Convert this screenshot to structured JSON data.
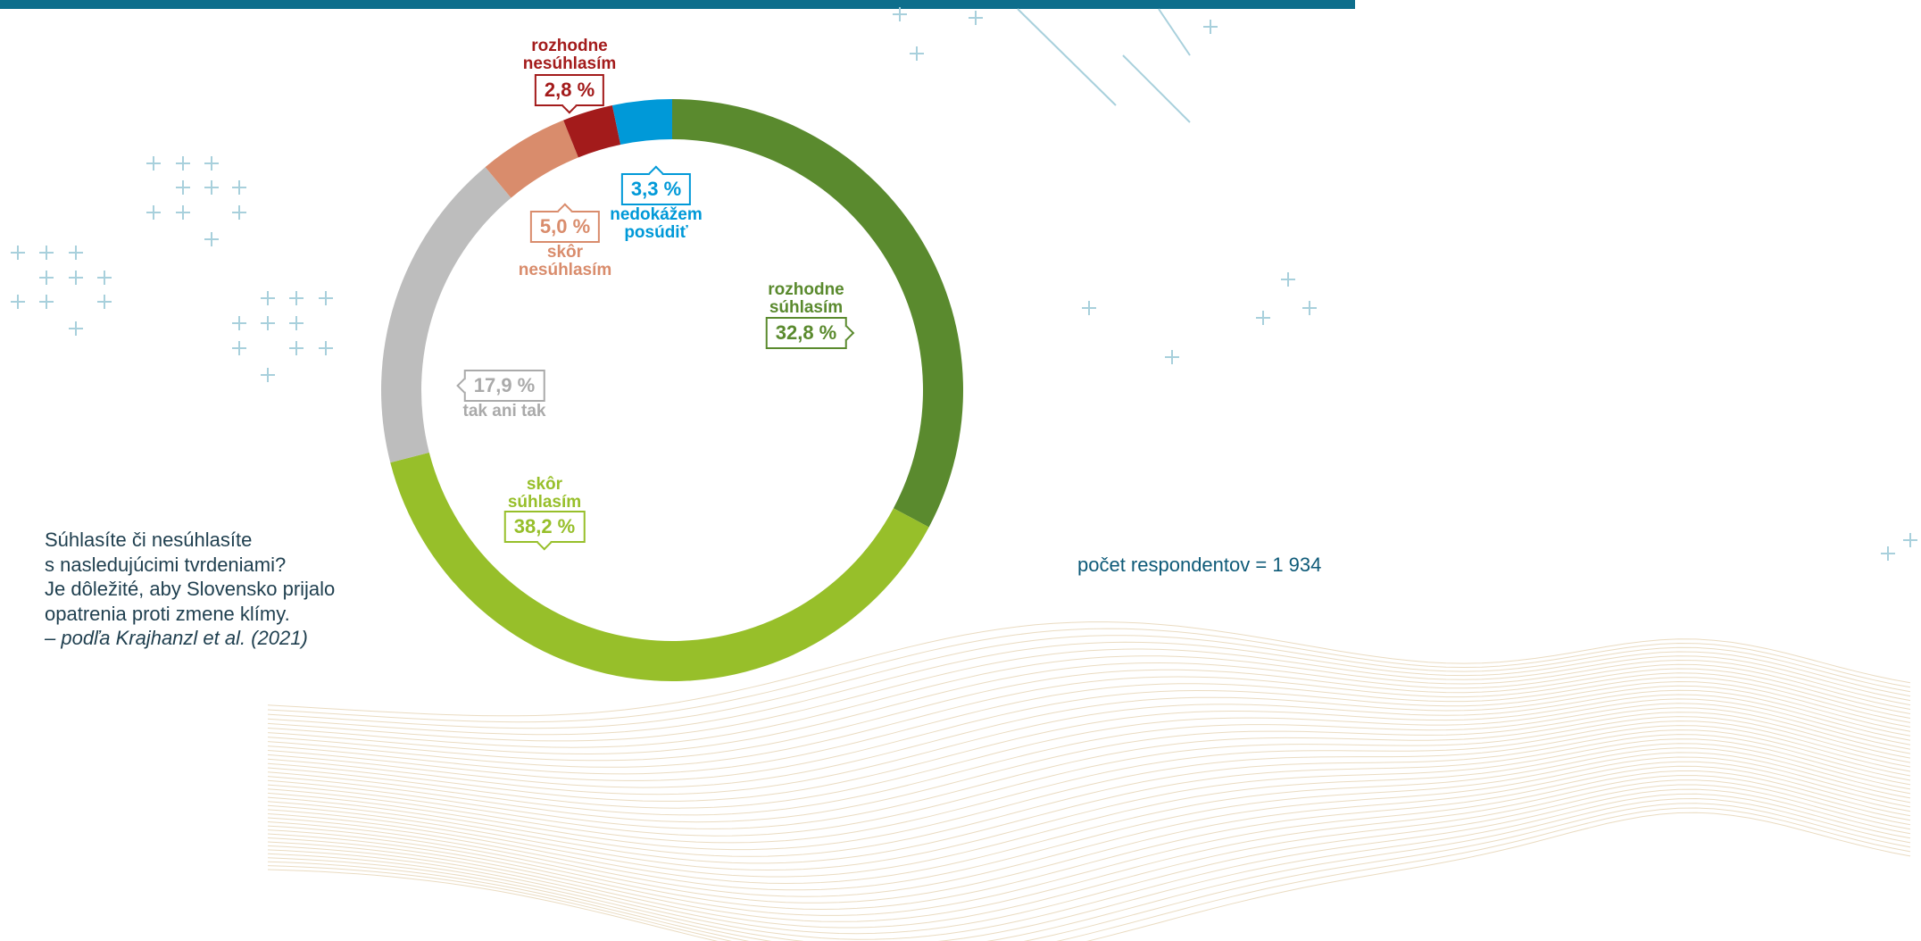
{
  "chart_data": {
    "type": "donut",
    "categories": [
      "rozhodne súhlasím",
      "skôr súhlasím",
      "tak ani tak",
      "skôr nesúhlasím",
      "rozhodne nesúhlasím",
      "nedokážem posúdiť"
    ],
    "values": [
      32.8,
      38.2,
      17.9,
      5.0,
      2.8,
      3.3
    ],
    "value_labels": [
      "32,8 %",
      "38,2 %",
      "17,9 %",
      "5,0 %",
      "2,8 %",
      "3,3 %"
    ],
    "colors": [
      "#5a8a2e",
      "#97bf2a",
      "#bdbdbd",
      "#d98c6c",
      "#a31b1b",
      "#0099d8"
    ],
    "note_lines": [
      "Súhlasíte či nesúhlasíte",
      "s nasledujúcimi tvrdeniami?",
      "Je dôležité, aby Slovensko prijalo",
      "opatrenia proti zmene klímy."
    ],
    "source": "– podľa Krajhanzl et al. (2021)",
    "sample": "počet respondentov = 1 934"
  }
}
